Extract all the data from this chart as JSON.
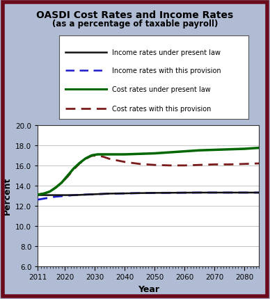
{
  "title_line1": "OASDI Cost Rates and Income Rates",
  "title_line2": "(as a percentage of taxable payroll)",
  "xlabel": "Year",
  "ylabel": "Percent",
  "background_color": "#b0bcd4",
  "plot_bg_color": "#ffffff",
  "border_color": "#6b0a1a",
  "ylim": [
    6.0,
    20.0
  ],
  "yticks": [
    6.0,
    8.0,
    10.0,
    12.0,
    14.0,
    16.0,
    18.0,
    20.0
  ],
  "xticks": [
    2011,
    2020,
    2030,
    2040,
    2050,
    2060,
    2070,
    2080
  ],
  "xlim": [
    2011,
    2085
  ],
  "legend_labels": [
    "Income rates under present law",
    "Income rates with this provision",
    "Cost rates under present law",
    "Cost rates with this provision"
  ],
  "legend_colors": [
    "#111111",
    "#1a1acc",
    "#006600",
    "#7a1a1a"
  ],
  "income_present_law": {
    "x": [
      2011,
      2013,
      2015,
      2017,
      2019,
      2021,
      2023,
      2025,
      2027,
      2029,
      2031,
      2033,
      2035,
      2040,
      2045,
      2050,
      2055,
      2060,
      2065,
      2070,
      2075,
      2080,
      2085
    ],
    "y": [
      13.05,
      13.05,
      13.05,
      13.05,
      13.05,
      13.05,
      13.05,
      13.07,
      13.1,
      13.12,
      13.15,
      13.17,
      13.2,
      13.22,
      13.25,
      13.27,
      13.28,
      13.29,
      13.3,
      13.3,
      13.3,
      13.3,
      13.3
    ]
  },
  "income_provision": {
    "x": [
      2011,
      2013,
      2015,
      2017,
      2019,
      2021,
      2023,
      2025,
      2027,
      2029,
      2031,
      2033,
      2035,
      2040,
      2045,
      2050,
      2055,
      2060,
      2065,
      2070,
      2075,
      2080,
      2085
    ],
    "y": [
      12.6,
      12.7,
      12.8,
      12.9,
      12.95,
      13.0,
      13.05,
      13.08,
      13.1,
      13.12,
      13.15,
      13.17,
      13.2,
      13.22,
      13.25,
      13.27,
      13.28,
      13.29,
      13.3,
      13.3,
      13.3,
      13.3,
      13.3
    ]
  },
  "cost_present_law": {
    "x": [
      2011,
      2013,
      2015,
      2017,
      2019,
      2021,
      2023,
      2025,
      2027,
      2029,
      2031,
      2033,
      2035,
      2040,
      2045,
      2050,
      2055,
      2060,
      2065,
      2070,
      2075,
      2080,
      2085
    ],
    "y": [
      13.1,
      13.2,
      13.4,
      13.8,
      14.3,
      15.0,
      15.7,
      16.25,
      16.7,
      17.0,
      17.1,
      17.1,
      17.1,
      17.1,
      17.15,
      17.2,
      17.3,
      17.4,
      17.5,
      17.55,
      17.6,
      17.65,
      17.75
    ]
  },
  "cost_provision": {
    "x": [
      2011,
      2013,
      2015,
      2017,
      2019,
      2021,
      2023,
      2025,
      2027,
      2029,
      2031,
      2033,
      2035,
      2040,
      2045,
      2050,
      2055,
      2060,
      2065,
      2070,
      2075,
      2080,
      2085
    ],
    "y": [
      13.1,
      13.2,
      13.4,
      13.8,
      14.3,
      14.9,
      15.6,
      16.2,
      16.65,
      16.95,
      17.0,
      16.85,
      16.65,
      16.35,
      16.15,
      16.05,
      16.0,
      16.0,
      16.05,
      16.1,
      16.1,
      16.15,
      16.2
    ]
  }
}
